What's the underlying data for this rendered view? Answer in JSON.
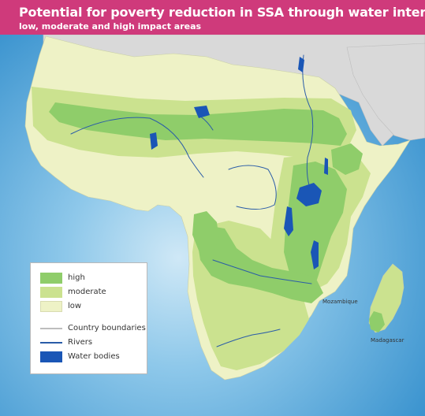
{
  "header": {
    "title": "Potential for poverty reduction in SSA through water interventions",
    "subtitle": "low, moderate and high impact areas"
  },
  "legend": {
    "impact": [
      {
        "label": "high",
        "color": "#8fcd6a"
      },
      {
        "label": "moderate",
        "color": "#cbe28f"
      },
      {
        "label": "low",
        "color": "#eef2c6"
      }
    ],
    "features": [
      {
        "label": "Country boundaries",
        "kind": "line",
        "color": "#bdbdbd"
      },
      {
        "label": "Rivers",
        "kind": "line",
        "color": "#2a5ca8"
      },
      {
        "label": "Water bodies",
        "kind": "box",
        "color": "#1a56b6"
      }
    ]
  },
  "places": {
    "mozambique": "Mozambique",
    "madagascar": "Madagascar"
  },
  "colors": {
    "ocean": "#5aa9d7",
    "land_outside": "#d8d8d8",
    "header": "#cf3a7b"
  }
}
